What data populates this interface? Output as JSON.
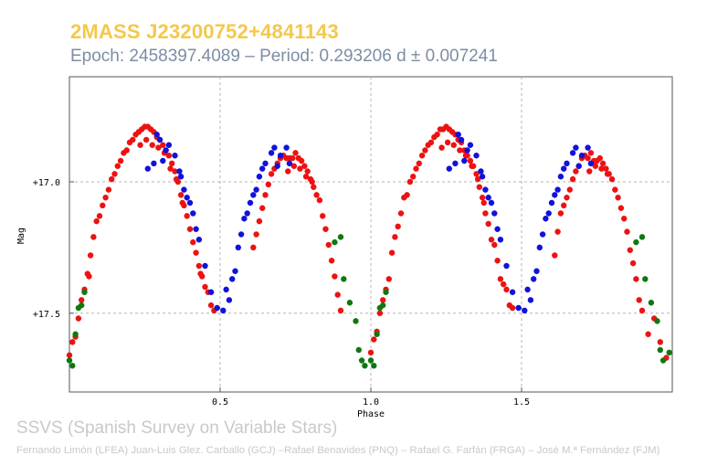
{
  "header": {
    "title": "2MASS J23200752+4841143",
    "subtitle": "Epoch: 2458397.4089 – Period: 0.293206 d ± 0.007241"
  },
  "footer": {
    "survey": "SSVS (Spanish Survey on Variable Stars)",
    "credits": "Fernando Limón (LFEA) Juan-Luis Glez. Carballo (GCJ) –Rafael Benavides (PNQ) – Rafael G. Farfán (FRGA) – José M.ª Fernández (FJM)"
  },
  "chart_data": {
    "type": "scatter",
    "xlabel": "Phase",
    "ylabel": "Mag",
    "xlim": [
      0.0,
      2.0
    ],
    "ylim": [
      16.6,
      17.8
    ],
    "y_inverted": true,
    "grid": true,
    "grid_style": "dashed",
    "x_ticks": [
      0.5,
      1.0,
      1.5
    ],
    "x_tick_labels": [
      "0.5",
      "1.0",
      "1.5"
    ],
    "y_ticks": [
      17.0,
      17.5
    ],
    "y_tick_labels": [
      "+17.0",
      "+17.5"
    ],
    "colors": {
      "red": "#ee1111",
      "blue": "#1111dd",
      "green": "#117711"
    },
    "series": [
      {
        "color": "red",
        "points": [
          [
            0.0,
            17.66
          ],
          [
            0.01,
            17.61
          ],
          [
            0.02,
            17.59
          ],
          [
            0.03,
            17.52
          ],
          [
            0.04,
            17.45
          ],
          [
            0.05,
            17.41
          ],
          [
            0.06,
            17.35
          ],
          [
            0.065,
            17.36
          ],
          [
            0.07,
            17.28
          ],
          [
            0.08,
            17.21
          ],
          [
            0.09,
            17.15
          ],
          [
            0.1,
            17.13
          ],
          [
            0.11,
            17.09
          ],
          [
            0.12,
            17.06
          ],
          [
            0.13,
            17.03
          ],
          [
            0.14,
            16.99
          ],
          [
            0.15,
            16.97
          ],
          [
            0.16,
            16.94
          ],
          [
            0.17,
            16.92
          ],
          [
            0.18,
            16.89
          ],
          [
            0.19,
            16.88
          ],
          [
            0.2,
            16.85
          ],
          [
            0.21,
            16.84
          ],
          [
            0.22,
            16.82
          ],
          [
            0.23,
            16.81
          ],
          [
            0.24,
            16.8
          ],
          [
            0.25,
            16.79
          ],
          [
            0.26,
            16.79
          ],
          [
            0.27,
            16.8
          ],
          [
            0.28,
            16.81
          ],
          [
            0.29,
            16.83
          ],
          [
            0.3,
            16.84
          ],
          [
            0.31,
            16.86
          ],
          [
            0.32,
            16.88
          ],
          [
            0.33,
            16.9
          ],
          [
            0.34,
            16.93
          ],
          [
            0.35,
            16.96
          ],
          [
            0.36,
            17.0
          ],
          [
            0.37,
            17.05
          ],
          [
            0.38,
            17.09
          ],
          [
            0.39,
            17.13
          ],
          [
            0.4,
            17.18
          ],
          [
            0.41,
            17.23
          ],
          [
            0.42,
            17.27
          ],
          [
            0.43,
            17.32
          ],
          [
            0.44,
            17.36
          ],
          [
            0.45,
            17.4
          ],
          [
            0.46,
            17.42
          ],
          [
            0.47,
            17.47
          ],
          [
            0.48,
            17.49
          ],
          [
            0.235,
            16.86
          ],
          [
            0.255,
            16.84
          ],
          [
            0.275,
            16.86
          ],
          [
            0.295,
            16.87
          ],
          [
            0.315,
            16.89
          ],
          [
            0.335,
            16.95
          ],
          [
            0.355,
            16.99
          ],
          [
            0.375,
            17.08
          ],
          [
            0.435,
            17.35
          ],
          [
            0.61,
            17.25
          ],
          [
            0.62,
            17.2
          ],
          [
            0.63,
            17.15
          ],
          [
            0.64,
            17.1
          ],
          [
            0.65,
            17.05
          ],
          [
            0.66,
            17.01
          ],
          [
            0.67,
            16.97
          ],
          [
            0.68,
            16.95
          ],
          [
            0.69,
            16.93
          ],
          [
            0.7,
            16.91
          ],
          [
            0.71,
            16.9
          ],
          [
            0.72,
            16.91
          ],
          [
            0.73,
            16.91
          ],
          [
            0.74,
            16.91
          ],
          [
            0.75,
            16.89
          ],
          [
            0.76,
            16.91
          ],
          [
            0.77,
            16.92
          ],
          [
            0.78,
            16.94
          ],
          [
            0.79,
            16.96
          ],
          [
            0.8,
            16.99
          ],
          [
            0.81,
            17.02
          ],
          [
            0.82,
            17.05
          ],
          [
            0.83,
            17.07
          ],
          [
            0.84,
            17.13
          ],
          [
            0.85,
            17.18
          ],
          [
            0.86,
            17.24
          ],
          [
            0.87,
            17.3
          ],
          [
            0.88,
            17.36
          ],
          [
            0.89,
            17.43
          ],
          [
            0.9,
            17.49
          ],
          [
            0.725,
            16.96
          ],
          [
            0.745,
            16.94
          ],
          [
            0.765,
            16.95
          ],
          [
            0.785,
            16.98
          ],
          [
            0.805,
            17.0
          ],
          [
            1.0,
            17.65
          ],
          [
            1.01,
            17.6
          ],
          [
            1.02,
            17.57
          ],
          [
            1.03,
            17.5
          ],
          [
            1.04,
            17.45
          ],
          [
            1.05,
            17.41
          ],
          [
            1.06,
            17.37
          ],
          [
            1.07,
            17.27
          ],
          [
            1.08,
            17.21
          ],
          [
            1.09,
            17.17
          ],
          [
            1.1,
            17.12
          ],
          [
            1.11,
            17.06
          ],
          [
            1.12,
            17.05
          ],
          [
            1.13,
            17.0
          ],
          [
            1.14,
            16.98
          ],
          [
            1.15,
            16.95
          ],
          [
            1.16,
            16.93
          ],
          [
            1.17,
            16.9
          ],
          [
            1.18,
            16.88
          ],
          [
            1.19,
            16.86
          ],
          [
            1.2,
            16.85
          ],
          [
            1.21,
            16.83
          ],
          [
            1.22,
            16.82
          ],
          [
            1.23,
            16.8
          ],
          [
            1.24,
            16.8
          ],
          [
            1.25,
            16.79
          ],
          [
            1.26,
            16.8
          ],
          [
            1.27,
            16.81
          ],
          [
            1.28,
            16.82
          ],
          [
            1.29,
            16.84
          ],
          [
            1.3,
            16.85
          ],
          [
            1.31,
            16.88
          ],
          [
            1.32,
            16.9
          ],
          [
            1.33,
            16.92
          ],
          [
            1.34,
            16.94
          ],
          [
            1.35,
            16.97
          ],
          [
            1.36,
            17.02
          ],
          [
            1.37,
            17.06
          ],
          [
            1.38,
            17.12
          ],
          [
            1.39,
            17.16
          ],
          [
            1.4,
            17.22
          ],
          [
            1.41,
            17.24
          ],
          [
            1.42,
            17.3
          ],
          [
            1.43,
            17.37
          ],
          [
            1.44,
            17.39
          ],
          [
            1.45,
            17.41
          ],
          [
            1.46,
            17.47
          ],
          [
            1.47,
            17.48
          ],
          [
            1.235,
            16.87
          ],
          [
            1.255,
            16.85
          ],
          [
            1.275,
            16.86
          ],
          [
            1.295,
            16.88
          ],
          [
            1.315,
            16.9
          ],
          [
            1.335,
            16.94
          ],
          [
            1.355,
            16.99
          ],
          [
            1.375,
            17.08
          ],
          [
            1.61,
            17.28
          ],
          [
            1.62,
            17.19
          ],
          [
            1.63,
            17.12
          ],
          [
            1.64,
            17.09
          ],
          [
            1.65,
            17.06
          ],
          [
            1.66,
            17.03
          ],
          [
            1.67,
            16.99
          ],
          [
            1.68,
            16.96
          ],
          [
            1.69,
            16.94
          ],
          [
            1.7,
            16.91
          ],
          [
            1.71,
            16.9
          ],
          [
            1.72,
            16.91
          ],
          [
            1.73,
            16.89
          ],
          [
            1.74,
            16.92
          ],
          [
            1.75,
            16.92
          ],
          [
            1.76,
            16.91
          ],
          [
            1.77,
            16.93
          ],
          [
            1.78,
            16.95
          ],
          [
            1.79,
            16.97
          ],
          [
            1.8,
            16.99
          ],
          [
            1.81,
            17.03
          ],
          [
            1.82,
            17.06
          ],
          [
            1.83,
            17.1
          ],
          [
            1.84,
            17.14
          ],
          [
            1.85,
            17.19
          ],
          [
            1.86,
            17.26
          ],
          [
            1.87,
            17.31
          ],
          [
            1.88,
            17.37
          ],
          [
            1.89,
            17.45
          ],
          [
            1.9,
            17.49
          ],
          [
            1.92,
            17.58
          ],
          [
            1.94,
            17.52
          ],
          [
            1.96,
            17.61
          ],
          [
            1.98,
            17.67
          ],
          [
            1.725,
            16.96
          ],
          [
            1.745,
            16.94
          ],
          [
            1.765,
            16.95
          ],
          [
            1.785,
            16.97
          ]
        ]
      },
      {
        "color": "blue",
        "points": [
          [
            0.26,
            16.95
          ],
          [
            0.28,
            16.93
          ],
          [
            0.29,
            16.82
          ],
          [
            0.3,
            16.84
          ],
          [
            0.31,
            16.92
          ],
          [
            0.32,
            16.88
          ],
          [
            0.33,
            16.86
          ],
          [
            0.35,
            16.9
          ],
          [
            0.37,
            16.98
          ],
          [
            0.38,
            17.03
          ],
          [
            0.4,
            17.08
          ],
          [
            0.41,
            17.12
          ],
          [
            0.42,
            17.18
          ],
          [
            0.43,
            17.22
          ],
          [
            0.45,
            17.32
          ],
          [
            0.47,
            17.42
          ],
          [
            0.49,
            17.48
          ],
          [
            0.51,
            17.49
          ],
          [
            0.53,
            17.45
          ],
          [
            0.54,
            17.37
          ],
          [
            0.55,
            17.34
          ],
          [
            0.56,
            17.25
          ],
          [
            0.57,
            17.2
          ],
          [
            0.58,
            17.14
          ],
          [
            0.59,
            17.12
          ],
          [
            0.6,
            17.08
          ],
          [
            0.61,
            17.05
          ],
          [
            0.62,
            17.03
          ],
          [
            0.63,
            16.98
          ],
          [
            0.64,
            16.95
          ],
          [
            0.65,
            16.93
          ],
          [
            0.67,
            16.89
          ],
          [
            0.68,
            16.87
          ],
          [
            0.69,
            16.94
          ],
          [
            0.7,
            16.9
          ],
          [
            0.72,
            16.87
          ],
          [
            0.73,
            16.93
          ],
          [
            0.365,
            16.96
          ],
          [
            0.39,
            17.06
          ],
          [
            0.52,
            17.41
          ],
          [
            1.26,
            16.95
          ],
          [
            1.28,
            16.93
          ],
          [
            1.29,
            16.82
          ],
          [
            1.3,
            16.84
          ],
          [
            1.31,
            16.92
          ],
          [
            1.32,
            16.88
          ],
          [
            1.33,
            16.86
          ],
          [
            1.35,
            16.9
          ],
          [
            1.37,
            16.98
          ],
          [
            1.38,
            17.03
          ],
          [
            1.4,
            17.08
          ],
          [
            1.41,
            17.12
          ],
          [
            1.42,
            17.18
          ],
          [
            1.43,
            17.22
          ],
          [
            1.45,
            17.32
          ],
          [
            1.47,
            17.42
          ],
          [
            1.49,
            17.48
          ],
          [
            1.51,
            17.49
          ],
          [
            1.53,
            17.45
          ],
          [
            1.54,
            17.37
          ],
          [
            1.55,
            17.34
          ],
          [
            1.56,
            17.25
          ],
          [
            1.57,
            17.2
          ],
          [
            1.58,
            17.14
          ],
          [
            1.59,
            17.12
          ],
          [
            1.6,
            17.08
          ],
          [
            1.61,
            17.05
          ],
          [
            1.62,
            17.03
          ],
          [
            1.63,
            16.98
          ],
          [
            1.64,
            16.95
          ],
          [
            1.65,
            16.93
          ],
          [
            1.67,
            16.89
          ],
          [
            1.68,
            16.87
          ],
          [
            1.69,
            16.94
          ],
          [
            1.7,
            16.9
          ],
          [
            1.72,
            16.87
          ],
          [
            1.73,
            16.93
          ],
          [
            1.365,
            16.96
          ],
          [
            1.39,
            17.06
          ],
          [
            1.52,
            17.41
          ]
        ]
      },
      {
        "color": "green",
        "points": [
          [
            0.0,
            17.68
          ],
          [
            0.01,
            17.7
          ],
          [
            0.02,
            17.58
          ],
          [
            0.03,
            17.48
          ],
          [
            0.04,
            17.47
          ],
          [
            0.05,
            17.42
          ],
          [
            0.88,
            17.23
          ],
          [
            0.9,
            17.21
          ],
          [
            0.91,
            17.37
          ],
          [
            0.93,
            17.46
          ],
          [
            0.95,
            17.53
          ],
          [
            0.96,
            17.64
          ],
          [
            0.97,
            17.68
          ],
          [
            0.98,
            17.7
          ],
          [
            1.0,
            17.68
          ],
          [
            1.01,
            17.7
          ],
          [
            1.02,
            17.58
          ],
          [
            1.03,
            17.48
          ],
          [
            1.04,
            17.47
          ],
          [
            1.05,
            17.42
          ],
          [
            1.88,
            17.23
          ],
          [
            1.9,
            17.21
          ],
          [
            1.91,
            17.37
          ],
          [
            1.93,
            17.46
          ],
          [
            1.95,
            17.53
          ],
          [
            1.96,
            17.64
          ],
          [
            1.97,
            17.68
          ],
          [
            1.99,
            17.65
          ]
        ]
      }
    ]
  }
}
